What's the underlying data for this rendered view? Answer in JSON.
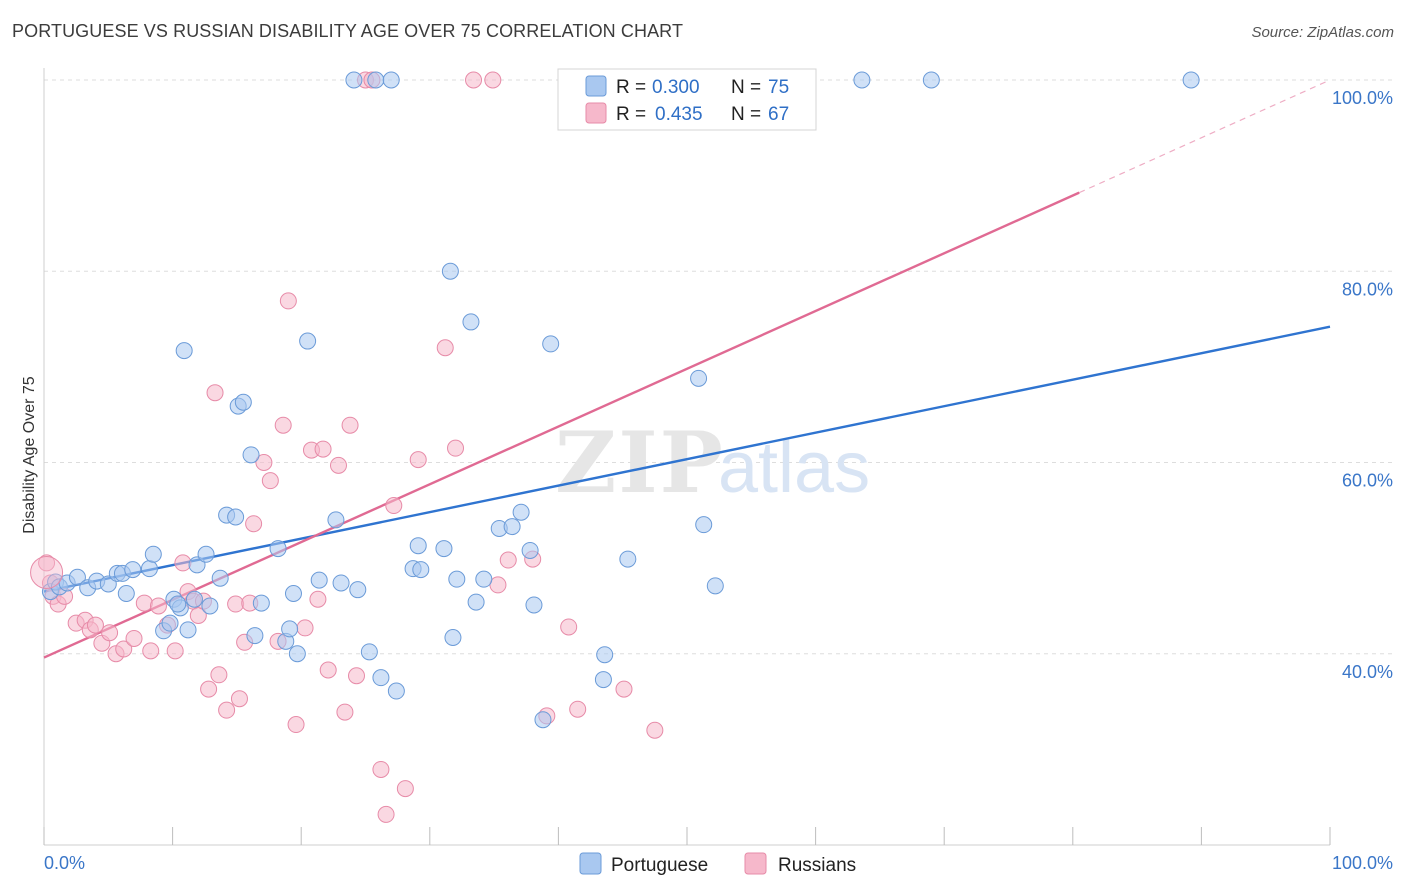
{
  "title": "PORTUGUESE VS RUSSIAN DISABILITY AGE OVER 75 CORRELATION CHART",
  "source": "Source: ZipAtlas.com",
  "colors": {
    "portuguese_fill": "#a9c8f0",
    "portuguese_stroke": "#6b9bd8",
    "portuguese_line": "#2f74d0",
    "russians_fill": "#f6b8cb",
    "russians_stroke": "#e78ba8",
    "russians_line": "#e06a93",
    "grid": "#dddddd",
    "tick_label": "#3a76c8"
  },
  "legend": {
    "r_label": "R =",
    "n_label": "N =",
    "rows": [
      {
        "series": "Portuguese",
        "r": "0.300",
        "n": "75"
      },
      {
        "series": "Russians",
        "r": "0.435",
        "n": "67"
      }
    ]
  },
  "watermark": {
    "zip": "ZIP",
    "atlas": "atlas"
  },
  "chart_data": {
    "type": "scatter",
    "title": "PORTUGUESE VS RUSSIAN DISABILITY AGE OVER 75 CORRELATION CHART",
    "xlabel": "",
    "ylabel": "Disability Age Over 75",
    "xlim": [
      0,
      100
    ],
    "ylim": [
      20,
      100
    ],
    "x_tick_labels": [
      "0.0%",
      "100.0%"
    ],
    "y_ticks": [
      40,
      60,
      80,
      100
    ],
    "y_tick_labels": [
      "40.0%",
      "60.0%",
      "80.0%",
      "100.0%"
    ],
    "series": [
      {
        "name": "Portuguese",
        "trend": {
          "x": [
            0,
            100
          ],
          "y": [
            46.5,
            74.2
          ]
        },
        "points": [
          [
            0.5,
            46.5
          ],
          [
            0.9,
            47.5
          ],
          [
            1.2,
            47.0
          ],
          [
            1.8,
            47.4
          ],
          [
            2.6,
            48.0
          ],
          [
            3.4,
            46.9
          ],
          [
            4.1,
            47.6
          ],
          [
            5.0,
            47.3
          ],
          [
            5.7,
            48.4
          ],
          [
            6.1,
            48.4
          ],
          [
            6.4,
            46.3
          ],
          [
            6.9,
            48.8
          ],
          [
            8.2,
            48.9
          ],
          [
            8.5,
            50.4
          ],
          [
            9.3,
            42.4
          ],
          [
            9.8,
            43.2
          ],
          [
            10.1,
            45.7
          ],
          [
            10.6,
            44.8
          ],
          [
            10.4,
            45.2
          ],
          [
            10.9,
            71.7
          ],
          [
            11.2,
            42.5
          ],
          [
            11.7,
            45.7
          ],
          [
            11.9,
            49.3
          ],
          [
            12.6,
            50.4
          ],
          [
            12.9,
            45.0
          ],
          [
            13.7,
            47.9
          ],
          [
            14.2,
            54.5
          ],
          [
            14.9,
            54.3
          ],
          [
            15.1,
            65.9
          ],
          [
            15.5,
            66.3
          ],
          [
            16.1,
            60.8
          ],
          [
            16.4,
            41.9
          ],
          [
            16.9,
            45.3
          ],
          [
            18.2,
            51.0
          ],
          [
            18.8,
            41.3
          ],
          [
            19.1,
            42.6
          ],
          [
            19.4,
            46.3
          ],
          [
            19.7,
            40.0
          ],
          [
            20.5,
            72.7
          ],
          [
            21.4,
            47.7
          ],
          [
            22.7,
            54.0
          ],
          [
            23.1,
            47.4
          ],
          [
            24.1,
            100
          ],
          [
            24.4,
            46.7
          ],
          [
            25.3,
            40.2
          ],
          [
            25.8,
            100
          ],
          [
            26.2,
            37.5
          ],
          [
            27.0,
            100
          ],
          [
            27.4,
            36.1
          ],
          [
            28.7,
            48.9
          ],
          [
            29.1,
            51.3
          ],
          [
            29.3,
            48.8
          ],
          [
            31.1,
            51.0
          ],
          [
            31.8,
            41.7
          ],
          [
            31.6,
            80.0
          ],
          [
            32.1,
            47.8
          ],
          [
            33.2,
            74.7
          ],
          [
            33.6,
            45.4
          ],
          [
            34.2,
            47.8
          ],
          [
            35.4,
            53.1
          ],
          [
            36.4,
            53.3
          ],
          [
            37.1,
            54.8
          ],
          [
            37.8,
            50.8
          ],
          [
            38.1,
            45.1
          ],
          [
            38.8,
            33.1
          ],
          [
            39.4,
            72.4
          ],
          [
            43.5,
            37.3
          ],
          [
            43.6,
            39.9
          ],
          [
            45.4,
            49.9
          ],
          [
            50.9,
            68.8
          ],
          [
            51.3,
            53.5
          ],
          [
            52.2,
            47.1
          ],
          [
            63.6,
            100
          ],
          [
            69.0,
            100
          ],
          [
            89.2,
            100
          ]
        ]
      },
      {
        "name": "Russians",
        "trend": {
          "x": [
            0,
            100
          ],
          "y": [
            39.6,
            100
          ]
        },
        "points": [
          [
            0.2,
            49.5
          ],
          [
            0.5,
            47.4
          ],
          [
            0.7,
            46.0
          ],
          [
            1.1,
            45.2
          ],
          [
            1.6,
            46.0
          ],
          [
            2.5,
            43.2
          ],
          [
            3.2,
            43.5
          ],
          [
            3.6,
            42.5
          ],
          [
            4.0,
            43.0
          ],
          [
            4.5,
            41.1
          ],
          [
            5.1,
            42.2
          ],
          [
            5.6,
            40.0
          ],
          [
            6.2,
            40.5
          ],
          [
            7.0,
            41.6
          ],
          [
            7.8,
            45.3
          ],
          [
            8.3,
            40.3
          ],
          [
            8.9,
            45.0
          ],
          [
            9.6,
            43.0
          ],
          [
            10.2,
            40.3
          ],
          [
            10.8,
            49.5
          ],
          [
            11.2,
            46.5
          ],
          [
            11.6,
            45.5
          ],
          [
            12.0,
            44.0
          ],
          [
            12.4,
            45.5
          ],
          [
            12.8,
            36.3
          ],
          [
            13.3,
            67.3
          ],
          [
            13.6,
            37.8
          ],
          [
            14.2,
            34.1
          ],
          [
            14.9,
            45.2
          ],
          [
            15.2,
            35.3
          ],
          [
            15.6,
            41.2
          ],
          [
            16.0,
            45.3
          ],
          [
            16.3,
            53.6
          ],
          [
            17.1,
            60.0
          ],
          [
            17.6,
            58.1
          ],
          [
            18.2,
            41.3
          ],
          [
            18.6,
            63.9
          ],
          [
            19.0,
            76.9
          ],
          [
            19.6,
            32.6
          ],
          [
            20.3,
            42.7
          ],
          [
            20.8,
            61.3
          ],
          [
            21.3,
            45.7
          ],
          [
            21.7,
            61.4
          ],
          [
            22.1,
            38.3
          ],
          [
            22.9,
            59.7
          ],
          [
            23.4,
            33.9
          ],
          [
            23.8,
            63.9
          ],
          [
            24.3,
            37.7
          ],
          [
            25.0,
            100
          ],
          [
            25.5,
            100
          ],
          [
            26.2,
            27.9
          ],
          [
            26.6,
            23.2
          ],
          [
            27.2,
            55.5
          ],
          [
            28.1,
            25.9
          ],
          [
            29.1,
            60.3
          ],
          [
            31.2,
            72.0
          ],
          [
            32.0,
            61.5
          ],
          [
            33.4,
            100
          ],
          [
            34.9,
            100
          ],
          [
            35.3,
            47.2
          ],
          [
            36.1,
            49.8
          ],
          [
            38.0,
            49.9
          ],
          [
            39.1,
            33.5
          ],
          [
            40.8,
            42.8
          ],
          [
            41.5,
            34.2
          ],
          [
            45.1,
            36.3
          ],
          [
            47.5,
            32.0
          ]
        ]
      }
    ]
  },
  "bottom_legend": [
    "Portuguese",
    "Russians"
  ]
}
